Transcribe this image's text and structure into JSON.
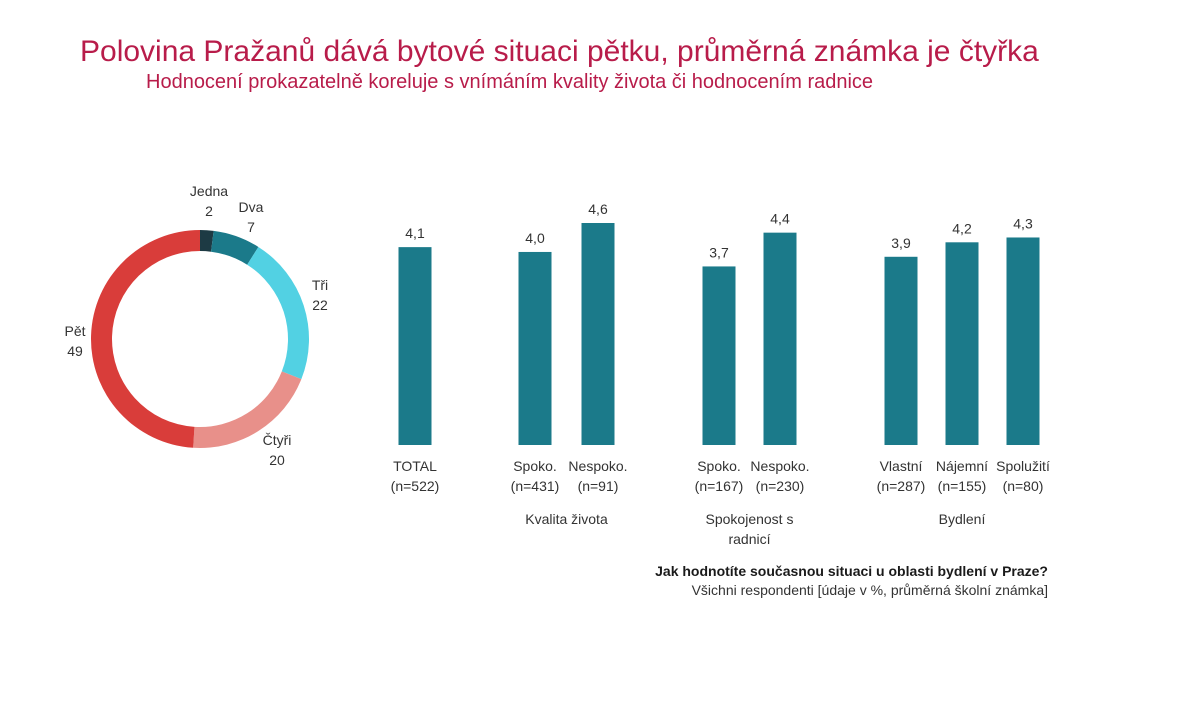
{
  "header": {
    "title": "Polovina Pražanů dává bytové situaci pětku, průměrná známka je čtyřka",
    "subtitle": "Hodnocení prokazatelně koreluje s vnímáním kvality života či hodnocením radnice"
  },
  "footer": {
    "question": "Jak hodnotíte současnou situaci u oblasti bydlení v Praze?",
    "note": "Všichni respondenti [údaje v %, průměrná školní známka]"
  },
  "chart_data": [
    {
      "type": "pie",
      "variant": "donut",
      "categories": [
        "Jedna",
        "Dva",
        "Tři",
        "Čtyři",
        "Pět"
      ],
      "values": [
        2,
        7,
        22,
        20,
        49
      ],
      "colors": [
        "#1d3a44",
        "#1b7a8a",
        "#52d1e3",
        "#e8908a",
        "#d93d3a"
      ]
    },
    {
      "type": "bar",
      "bar_color": "#1b7a8a",
      "ylim": [
        0,
        5
      ],
      "groups": [
        {
          "label": "",
          "bars": [
            {
              "label": "TOTAL",
              "n": "(n=522)",
              "value": 4.1,
              "value_label": "4,1"
            }
          ]
        },
        {
          "label": "Kvalita života",
          "bars": [
            {
              "label": "Spoko.",
              "n": "(n=431)",
              "value": 4.0,
              "value_label": "4,0"
            },
            {
              "label": "Nespoko.",
              "n": "(n=91)",
              "value": 4.6,
              "value_label": "4,6"
            }
          ]
        },
        {
          "label": "Spokojenost s\nradnicí",
          "bars": [
            {
              "label": "Spoko.",
              "n": "(n=167)",
              "value": 3.7,
              "value_label": "3,7"
            },
            {
              "label": "Nespoko.",
              "n": "(n=230)",
              "value": 4.4,
              "value_label": "4,4"
            }
          ]
        },
        {
          "label": "Bydlení",
          "bars": [
            {
              "label": "Vlastní",
              "n": "(n=287)",
              "value": 3.9,
              "value_label": "3,9"
            },
            {
              "label": "Nájemní",
              "n": "(n=155)",
              "value": 4.2,
              "value_label": "4,2"
            },
            {
              "label": "Spolužití",
              "n": "(n=80)",
              "value": 4.3,
              "value_label": "4,3"
            }
          ]
        }
      ]
    }
  ]
}
